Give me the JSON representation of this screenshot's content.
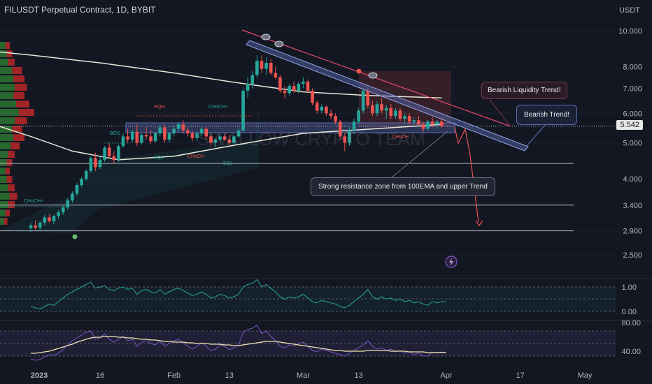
{
  "header": {
    "title": "FILUSDT Perpetual Contract, 1D, BYBIT"
  },
  "watermark": "SWALLOW CRYPTO TEAM",
  "current_price": "5.542",
  "colors": {
    "up": "#26a69a",
    "down": "#ef5350",
    "bg": "#131722",
    "ema": "#e8e6d8",
    "trend": "#5b6db5",
    "liquidity": "#e84a6a",
    "rsi": "#7e57c2",
    "osc": "#26a69a"
  },
  "annotations": {
    "bearish_liquidity": "Bearish Liquidity Trend!",
    "bearish_trend": "Bearish Trend!",
    "resistance": "Strong resistance zone from 100EMA and upper Trend"
  },
  "smc_labels": {
    "eqh": "EQH",
    "choch_top": "CHoCH+",
    "bos": "BOS",
    "eql_left": "EQL",
    "choch_mid": "CHoCH",
    "eql_right": "EQL",
    "choch_low": "CHoCH+",
    "choch_right": "CHoCH"
  },
  "chart_data": {
    "type": "candlestick",
    "symbol": "FILUSDT",
    "timeframe": "1D",
    "exchange": "BYBIT",
    "scale": "log",
    "y_axis_label": "USDT",
    "y_ticks": [
      "10.000",
      "8.000",
      "7.000",
      "6.000",
      "5.000",
      "4.000",
      "3.400",
      "2.900",
      "2.500"
    ],
    "x_ticks": [
      "2023",
      "16",
      "Feb",
      "13",
      "Mar",
      "13",
      "Apr",
      "17",
      "May"
    ],
    "horizontal_levels": [
      4.4,
      3.4,
      2.9
    ],
    "last_price": 5.542,
    "candles": [
      {
        "d": "2023-01-01",
        "o": 2.95,
        "h": 3.05,
        "l": 2.88,
        "c": 3.0
      },
      {
        "d": "2023-01-02",
        "o": 3.0,
        "h": 3.1,
        "l": 2.92,
        "c": 2.96
      },
      {
        "d": "2023-01-03",
        "o": 2.96,
        "h": 3.08,
        "l": 2.9,
        "c": 3.05
      },
      {
        "d": "2023-01-04",
        "o": 3.05,
        "h": 3.2,
        "l": 3.0,
        "c": 3.15
      },
      {
        "d": "2023-01-05",
        "o": 3.15,
        "h": 3.22,
        "l": 3.05,
        "c": 3.08
      },
      {
        "d": "2023-01-06",
        "o": 3.08,
        "h": 3.2,
        "l": 3.02,
        "c": 3.18
      },
      {
        "d": "2023-01-07",
        "o": 3.18,
        "h": 3.3,
        "l": 3.12,
        "c": 3.25
      },
      {
        "d": "2023-01-08",
        "o": 3.25,
        "h": 3.4,
        "l": 3.2,
        "c": 3.35
      },
      {
        "d": "2023-01-09",
        "o": 3.35,
        "h": 3.55,
        "l": 3.3,
        "c": 3.5
      },
      {
        "d": "2023-01-10",
        "o": 3.5,
        "h": 3.7,
        "l": 3.45,
        "c": 3.65
      },
      {
        "d": "2023-01-11",
        "o": 3.65,
        "h": 3.9,
        "l": 3.6,
        "c": 3.85
      },
      {
        "d": "2023-01-12",
        "o": 3.85,
        "h": 4.05,
        "l": 3.8,
        "c": 4.0
      },
      {
        "d": "2023-01-13",
        "o": 4.0,
        "h": 4.25,
        "l": 3.95,
        "c": 4.2
      },
      {
        "d": "2023-01-14",
        "o": 4.2,
        "h": 4.6,
        "l": 4.15,
        "c": 4.55
      },
      {
        "d": "2023-01-15",
        "o": 4.55,
        "h": 4.7,
        "l": 4.2,
        "c": 4.3
      },
      {
        "d": "2023-01-16",
        "o": 4.3,
        "h": 4.6,
        "l": 4.25,
        "c": 4.5
      },
      {
        "d": "2023-01-17",
        "o": 4.5,
        "h": 4.9,
        "l": 4.45,
        "c": 4.85
      },
      {
        "d": "2023-01-18",
        "o": 4.85,
        "h": 5.0,
        "l": 4.55,
        "c": 4.6
      },
      {
        "d": "2023-01-19",
        "o": 4.6,
        "h": 4.75,
        "l": 4.4,
        "c": 4.5
      },
      {
        "d": "2023-01-20",
        "o": 4.5,
        "h": 4.95,
        "l": 4.45,
        "c": 4.9
      },
      {
        "d": "2023-01-21",
        "o": 4.9,
        "h": 5.3,
        "l": 4.85,
        "c": 5.2
      },
      {
        "d": "2023-01-22",
        "o": 5.2,
        "h": 5.45,
        "l": 5.0,
        "c": 5.1
      },
      {
        "d": "2023-01-23",
        "o": 5.1,
        "h": 5.4,
        "l": 5.0,
        "c": 5.35
      },
      {
        "d": "2023-01-24",
        "o": 5.35,
        "h": 5.6,
        "l": 4.9,
        "c": 5.0
      },
      {
        "d": "2023-01-25",
        "o": 5.0,
        "h": 5.3,
        "l": 4.95,
        "c": 5.25
      },
      {
        "d": "2023-01-26",
        "o": 5.25,
        "h": 5.5,
        "l": 5.1,
        "c": 5.2
      },
      {
        "d": "2023-01-27",
        "o": 5.2,
        "h": 5.4,
        "l": 4.95,
        "c": 5.05
      },
      {
        "d": "2023-01-28",
        "o": 5.05,
        "h": 5.35,
        "l": 5.0,
        "c": 5.3
      },
      {
        "d": "2023-01-29",
        "o": 5.3,
        "h": 5.6,
        "l": 5.2,
        "c": 5.5
      },
      {
        "d": "2023-01-30",
        "o": 5.5,
        "h": 5.6,
        "l": 5.0,
        "c": 5.1
      },
      {
        "d": "2023-01-31",
        "o": 5.1,
        "h": 5.35,
        "l": 5.0,
        "c": 5.3
      },
      {
        "d": "2023-02-01",
        "o": 5.3,
        "h": 5.55,
        "l": 5.2,
        "c": 5.45
      },
      {
        "d": "2023-02-02",
        "o": 5.45,
        "h": 5.7,
        "l": 5.35,
        "c": 5.6
      },
      {
        "d": "2023-02-03",
        "o": 5.6,
        "h": 5.75,
        "l": 5.3,
        "c": 5.4
      },
      {
        "d": "2023-02-04",
        "o": 5.4,
        "h": 5.5,
        "l": 5.2,
        "c": 5.3
      },
      {
        "d": "2023-02-05",
        "o": 5.3,
        "h": 5.4,
        "l": 5.05,
        "c": 5.15
      },
      {
        "d": "2023-02-06",
        "o": 5.15,
        "h": 5.35,
        "l": 5.05,
        "c": 5.3
      },
      {
        "d": "2023-02-07",
        "o": 5.3,
        "h": 5.5,
        "l": 5.2,
        "c": 5.45
      },
      {
        "d": "2023-02-08",
        "o": 5.45,
        "h": 5.55,
        "l": 5.1,
        "c": 5.2
      },
      {
        "d": "2023-02-09",
        "o": 5.2,
        "h": 5.3,
        "l": 4.9,
        "c": 5.0
      },
      {
        "d": "2023-02-10",
        "o": 5.0,
        "h": 5.15,
        "l": 4.85,
        "c": 5.1
      },
      {
        "d": "2023-02-11",
        "o": 5.1,
        "h": 5.3,
        "l": 5.0,
        "c": 5.2
      },
      {
        "d": "2023-02-12",
        "o": 5.2,
        "h": 5.3,
        "l": 5.05,
        "c": 5.1
      },
      {
        "d": "2023-02-13",
        "o": 5.1,
        "h": 5.25,
        "l": 4.9,
        "c": 5.0
      },
      {
        "d": "2023-02-14",
        "o": 5.0,
        "h": 5.25,
        "l": 4.95,
        "c": 5.2
      },
      {
        "d": "2023-02-15",
        "o": 5.2,
        "h": 5.45,
        "l": 5.15,
        "c": 5.4
      },
      {
        "d": "2023-02-16",
        "o": 5.4,
        "h": 7.0,
        "l": 5.35,
        "c": 6.9
      },
      {
        "d": "2023-02-17",
        "o": 6.9,
        "h": 7.5,
        "l": 6.6,
        "c": 7.2
      },
      {
        "d": "2023-02-18",
        "o": 7.2,
        "h": 7.8,
        "l": 7.0,
        "c": 7.6
      },
      {
        "d": "2023-02-19",
        "o": 7.6,
        "h": 8.6,
        "l": 7.5,
        "c": 8.3
      },
      {
        "d": "2023-02-20",
        "o": 8.3,
        "h": 8.6,
        "l": 7.7,
        "c": 7.9
      },
      {
        "d": "2023-02-21",
        "o": 7.9,
        "h": 8.5,
        "l": 7.6,
        "c": 8.2
      },
      {
        "d": "2023-02-22",
        "o": 8.2,
        "h": 8.4,
        "l": 7.6,
        "c": 7.7
      },
      {
        "d": "2023-02-23",
        "o": 7.7,
        "h": 8.0,
        "l": 7.4,
        "c": 7.5
      },
      {
        "d": "2023-02-24",
        "o": 7.5,
        "h": 7.6,
        "l": 6.8,
        "c": 6.9
      },
      {
        "d": "2023-02-25",
        "o": 6.9,
        "h": 7.1,
        "l": 6.6,
        "c": 6.8
      },
      {
        "d": "2023-02-26",
        "o": 6.8,
        "h": 7.2,
        "l": 6.7,
        "c": 7.1
      },
      {
        "d": "2023-02-27",
        "o": 7.1,
        "h": 7.3,
        "l": 6.8,
        "c": 6.9
      },
      {
        "d": "2023-02-28",
        "o": 6.9,
        "h": 7.3,
        "l": 6.8,
        "c": 7.2
      },
      {
        "d": "2023-03-01",
        "o": 7.2,
        "h": 7.5,
        "l": 7.0,
        "c": 7.3
      },
      {
        "d": "2023-03-02",
        "o": 7.3,
        "h": 7.4,
        "l": 6.8,
        "c": 6.9
      },
      {
        "d": "2023-03-03",
        "o": 6.9,
        "h": 7.0,
        "l": 6.3,
        "c": 6.4
      },
      {
        "d": "2023-03-04",
        "o": 6.4,
        "h": 6.5,
        "l": 6.0,
        "c": 6.1
      },
      {
        "d": "2023-03-05",
        "o": 6.1,
        "h": 6.35,
        "l": 6.0,
        "c": 6.25
      },
      {
        "d": "2023-03-06",
        "o": 6.25,
        "h": 6.3,
        "l": 5.9,
        "c": 6.0
      },
      {
        "d": "2023-03-07",
        "o": 6.0,
        "h": 6.15,
        "l": 5.8,
        "c": 5.9
      },
      {
        "d": "2023-03-08",
        "o": 5.9,
        "h": 6.0,
        "l": 5.6,
        "c": 5.7
      },
      {
        "d": "2023-03-09",
        "o": 5.7,
        "h": 5.75,
        "l": 5.1,
        "c": 5.2
      },
      {
        "d": "2023-03-10",
        "o": 5.2,
        "h": 5.3,
        "l": 4.75,
        "c": 5.0
      },
      {
        "d": "2023-03-11",
        "o": 5.0,
        "h": 5.5,
        "l": 4.9,
        "c": 5.4
      },
      {
        "d": "2023-03-12",
        "o": 5.4,
        "h": 5.8,
        "l": 5.3,
        "c": 5.7
      },
      {
        "d": "2023-03-13",
        "o": 5.7,
        "h": 6.2,
        "l": 5.6,
        "c": 6.1
      },
      {
        "d": "2023-03-14",
        "o": 6.1,
        "h": 7.0,
        "l": 6.0,
        "c": 6.9
      },
      {
        "d": "2023-03-15",
        "o": 6.9,
        "h": 7.0,
        "l": 6.2,
        "c": 6.3
      },
      {
        "d": "2023-03-16",
        "o": 6.3,
        "h": 6.5,
        "l": 5.9,
        "c": 6.0
      },
      {
        "d": "2023-03-17",
        "o": 6.0,
        "h": 6.45,
        "l": 5.9,
        "c": 6.35
      },
      {
        "d": "2023-03-18",
        "o": 6.35,
        "h": 6.6,
        "l": 6.0,
        "c": 6.1
      },
      {
        "d": "2023-03-19",
        "o": 6.1,
        "h": 6.3,
        "l": 5.8,
        "c": 6.2
      },
      {
        "d": "2023-03-20",
        "o": 6.2,
        "h": 6.35,
        "l": 5.8,
        "c": 5.9
      },
      {
        "d": "2023-03-21",
        "o": 5.9,
        "h": 6.2,
        "l": 5.8,
        "c": 6.1
      },
      {
        "d": "2023-03-22",
        "o": 6.1,
        "h": 6.2,
        "l": 5.7,
        "c": 5.8
      },
      {
        "d": "2023-03-23",
        "o": 5.8,
        "h": 6.0,
        "l": 5.65,
        "c": 5.9
      },
      {
        "d": "2023-03-24",
        "o": 5.9,
        "h": 6.0,
        "l": 5.6,
        "c": 5.7
      },
      {
        "d": "2023-03-25",
        "o": 5.7,
        "h": 5.85,
        "l": 5.6,
        "c": 5.75
      },
      {
        "d": "2023-03-26",
        "o": 5.75,
        "h": 5.9,
        "l": 5.55,
        "c": 5.6
      },
      {
        "d": "2023-03-27",
        "o": 5.6,
        "h": 5.7,
        "l": 5.35,
        "c": 5.45
      },
      {
        "d": "2023-03-28",
        "o": 5.45,
        "h": 5.75,
        "l": 5.4,
        "c": 5.7
      },
      {
        "d": "2023-03-29",
        "o": 5.7,
        "h": 5.85,
        "l": 5.5,
        "c": 5.6
      },
      {
        "d": "2023-03-30",
        "o": 5.6,
        "h": 5.75,
        "l": 5.45,
        "c": 5.7
      },
      {
        "d": "2023-03-31",
        "o": 5.7,
        "h": 5.85,
        "l": 5.5,
        "c": 5.542
      }
    ],
    "ema_200": [
      {
        "d": "2023-01-01",
        "v": 8.6
      },
      {
        "d": "2023-01-16",
        "v": 8.2
      },
      {
        "d": "2023-02-01",
        "v": 7.7
      },
      {
        "d": "2023-02-13",
        "v": 7.3
      },
      {
        "d": "2023-03-01",
        "v": 6.85
      },
      {
        "d": "2023-03-15",
        "v": 6.7
      },
      {
        "d": "2023-03-31",
        "v": 6.6
      }
    ],
    "ema_100": [
      {
        "d": "2023-01-01",
        "v": 5.2
      },
      {
        "d": "2023-01-10",
        "v": 4.75
      },
      {
        "d": "2023-01-20",
        "v": 4.5
      },
      {
        "d": "2023-02-01",
        "v": 4.6
      },
      {
        "d": "2023-02-13",
        "v": 4.9
      },
      {
        "d": "2023-03-01",
        "v": 5.3
      },
      {
        "d": "2023-03-31",
        "v": 5.6
      }
    ],
    "oscillator": {
      "ticks": [
        "1.00",
        "0.00"
      ],
      "values": [
        0.2,
        0.15,
        0.1,
        0.2,
        0.3,
        0.25,
        0.4,
        0.55,
        0.7,
        0.8,
        0.9,
        1.0,
        1.1,
        1.2,
        0.95,
        1.0,
        1.05,
        0.9,
        0.85,
        0.95,
        1.0,
        0.9,
        0.95,
        0.7,
        0.85,
        0.9,
        0.8,
        0.75,
        0.9,
        0.7,
        0.8,
        0.9,
        0.95,
        0.85,
        0.75,
        0.65,
        0.7,
        0.8,
        0.7,
        0.55,
        0.6,
        0.7,
        0.65,
        0.55,
        0.6,
        0.7,
        1.0,
        1.1,
        1.15,
        1.3,
        1.0,
        1.1,
        0.95,
        0.8,
        0.6,
        0.5,
        0.6,
        0.55,
        0.6,
        0.7,
        0.55,
        0.4,
        0.35,
        0.45,
        0.4,
        0.35,
        0.3,
        0.2,
        0.15,
        0.25,
        0.4,
        0.55,
        0.7,
        0.9,
        0.6,
        0.5,
        0.6,
        0.5,
        0.55,
        0.45,
        0.5,
        0.4,
        0.45,
        0.35,
        0.4,
        0.3,
        0.25,
        0.4,
        0.35,
        0.4,
        0.38
      ]
    },
    "rsi": {
      "ticks": [
        "80.00",
        "40.00"
      ],
      "values": [
        32,
        30,
        31,
        35,
        38,
        37,
        40,
        45,
        52,
        58,
        62,
        66,
        70,
        72,
        60,
        62,
        68,
        60,
        56,
        60,
        64,
        58,
        60,
        50,
        56,
        58,
        54,
        52,
        58,
        50,
        54,
        58,
        60,
        55,
        50,
        46,
        50,
        55,
        50,
        44,
        46,
        52,
        50,
        45,
        48,
        52,
        70,
        74,
        76,
        80,
        68,
        72,
        64,
        58,
        50,
        48,
        52,
        50,
        54,
        56,
        50,
        44,
        42,
        46,
        44,
        42,
        40,
        38,
        36,
        40,
        44,
        48,
        52,
        58,
        50,
        46,
        48,
        44,
        46,
        42,
        44,
        40,
        42,
        38,
        40,
        36,
        36,
        42,
        40,
        42,
        41
      ],
      "ma": [
        40,
        40,
        41,
        42,
        43,
        45,
        47,
        49,
        51,
        53,
        56,
        58,
        60,
        62,
        63,
        63,
        64,
        64,
        64,
        63,
        63,
        62,
        62,
        61,
        60,
        60,
        59,
        59,
        58,
        57,
        57,
        56,
        56,
        56,
        55,
        55,
        54,
        54,
        54,
        53,
        53,
        53,
        52,
        52,
        51,
        51,
        52,
        53,
        54,
        55,
        56,
        57,
        57,
        57,
        56,
        55,
        54,
        53,
        52,
        51,
        50,
        49,
        48,
        47,
        46,
        45,
        44,
        44,
        43,
        43,
        43,
        43,
        43,
        44,
        44,
        44,
        44,
        44,
        43,
        43,
        43,
        43,
        42,
        42,
        42,
        42,
        41,
        41,
        41,
        41,
        41
      ]
    }
  }
}
